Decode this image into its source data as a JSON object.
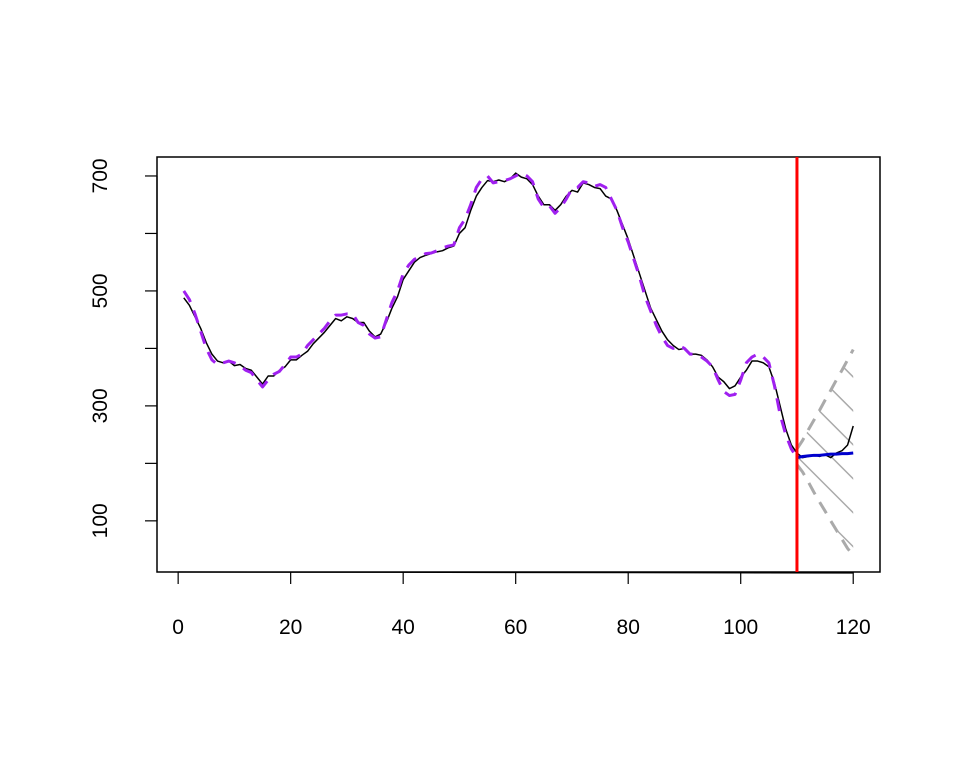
{
  "chart_data": {
    "type": "line",
    "x": [
      1,
      2,
      3,
      4,
      5,
      6,
      7,
      8,
      9,
      10,
      11,
      12,
      13,
      14,
      15,
      16,
      17,
      18,
      19,
      20,
      21,
      22,
      23,
      24,
      25,
      26,
      27,
      28,
      29,
      30,
      31,
      32,
      33,
      34,
      35,
      36,
      37,
      38,
      39,
      40,
      41,
      42,
      43,
      44,
      45,
      46,
      47,
      48,
      49,
      50,
      51,
      52,
      53,
      54,
      55,
      56,
      57,
      58,
      59,
      60,
      61,
      62,
      63,
      64,
      65,
      66,
      67,
      68,
      69,
      70,
      71,
      72,
      73,
      74,
      75,
      76,
      77,
      78,
      79,
      80,
      81,
      82,
      83,
      84,
      85,
      86,
      87,
      88,
      89,
      90,
      91,
      92,
      93,
      94,
      95,
      96,
      97,
      98,
      99,
      100,
      101,
      102,
      103,
      104,
      105,
      106,
      107,
      108,
      109,
      110,
      111,
      112,
      113,
      114,
      115,
      116,
      117,
      118,
      119,
      120
    ],
    "series": [
      {
        "color": "#000000",
        "width": 1.5,
        "dash": "none",
        "values": [
          488,
          475,
          455,
          435,
          410,
          390,
          378,
          375,
          378,
          370,
          372,
          365,
          362,
          350,
          338,
          352,
          352,
          362,
          368,
          380,
          380,
          388,
          395,
          408,
          418,
          428,
          440,
          452,
          448,
          455,
          452,
          445,
          445,
          430,
          420,
          425,
          445,
          470,
          490,
          520,
          535,
          550,
          558,
          562,
          565,
          568,
          570,
          575,
          578,
          600,
          610,
          640,
          665,
          680,
          692,
          690,
          693,
          690,
          695,
          705,
          698,
          695,
          685,
          665,
          650,
          650,
          640,
          650,
          665,
          675,
          672,
          688,
          685,
          680,
          678,
          665,
          660,
          640,
          615,
          590,
          560,
          530,
          500,
          470,
          450,
          430,
          415,
          405,
          398,
          400,
          390,
          390,
          388,
          380,
          368,
          350,
          342,
          330,
          335,
          350,
          362,
          378,
          378,
          375,
          368,
          340,
          300,
          260,
          232,
          218,
          210,
          212,
          215,
          212,
          215,
          210,
          218,
          222,
          232,
          265
        ]
      },
      {
        "color": "#a020f0",
        "width": 3,
        "dash": "13 9",
        "values": [
          500,
          485,
          460,
          430,
          400,
          380,
          372,
          375,
          378,
          375,
          370,
          362,
          358,
          345,
          333,
          345,
          355,
          360,
          372,
          385,
          385,
          390,
          405,
          415,
          425,
          435,
          448,
          458,
          458,
          460,
          460,
          445,
          440,
          425,
          418,
          420,
          450,
          480,
          500,
          530,
          545,
          555,
          560,
          565,
          566,
          570,
          575,
          578,
          580,
          610,
          625,
          650,
          680,
          695,
          700,
          688,
          690,
          692,
          695,
          700,
          705,
          700,
          690,
          660,
          645,
          648,
          635,
          645,
          660,
          678,
          680,
          690,
          688,
          682,
          685,
          680,
          660,
          640,
          610,
          585,
          555,
          525,
          490,
          465,
          440,
          420,
          405,
          400,
          405,
          400,
          390,
          390,
          385,
          378,
          368,
          345,
          325,
          318,
          320,
          345,
          375,
          385,
          390,
          385,
          375,
          335,
          285,
          250,
          225,
          210,
          null,
          null,
          null,
          null,
          null,
          null,
          null,
          null,
          null,
          null
        ]
      },
      {
        "color": "#0000cd",
        "width": 3,
        "dash": "none",
        "values": [
          null,
          null,
          null,
          null,
          null,
          null,
          null,
          null,
          null,
          null,
          null,
          null,
          null,
          null,
          null,
          null,
          null,
          null,
          null,
          null,
          null,
          null,
          null,
          null,
          null,
          null,
          null,
          null,
          null,
          null,
          null,
          null,
          null,
          null,
          null,
          null,
          null,
          null,
          null,
          null,
          null,
          null,
          null,
          null,
          null,
          null,
          null,
          null,
          null,
          null,
          null,
          null,
          null,
          null,
          null,
          null,
          null,
          null,
          null,
          null,
          null,
          null,
          null,
          null,
          null,
          null,
          null,
          null,
          null,
          null,
          null,
          null,
          null,
          null,
          null,
          null,
          null,
          null,
          null,
          null,
          null,
          null,
          null,
          null,
          null,
          null,
          null,
          null,
          null,
          null,
          null,
          null,
          null,
          null,
          null,
          null,
          null,
          null,
          null,
          null,
          null,
          null,
          null,
          null,
          null,
          null,
          null,
          null,
          null,
          210,
          212,
          213,
          214,
          214,
          215,
          216,
          216,
          217,
          217,
          218
        ]
      },
      {
        "color": "#aaaaaa",
        "width": 3,
        "dash": "13 9",
        "band": "upper",
        "values": [
          null,
          null,
          null,
          null,
          null,
          null,
          null,
          null,
          null,
          null,
          null,
          null,
          null,
          null,
          null,
          null,
          null,
          null,
          null,
          null,
          null,
          null,
          null,
          null,
          null,
          null,
          null,
          null,
          null,
          null,
          null,
          null,
          null,
          null,
          null,
          null,
          null,
          null,
          null,
          null,
          null,
          null,
          null,
          null,
          null,
          null,
          null,
          null,
          null,
          null,
          null,
          null,
          null,
          null,
          null,
          null,
          null,
          null,
          null,
          null,
          null,
          null,
          null,
          null,
          null,
          null,
          null,
          null,
          null,
          null,
          null,
          null,
          null,
          null,
          null,
          null,
          null,
          null,
          null,
          null,
          null,
          null,
          null,
          null,
          null,
          null,
          null,
          null,
          null,
          null,
          null,
          null,
          null,
          null,
          null,
          null,
          null,
          null,
          null,
          null,
          null,
          null,
          null,
          null,
          null,
          null,
          null,
          null,
          null,
          225,
          240,
          258,
          275,
          292,
          310,
          327,
          345,
          362,
          380,
          398
        ]
      },
      {
        "color": "#aaaaaa",
        "width": 3,
        "dash": "13 9",
        "band": "lower",
        "values": [
          null,
          null,
          null,
          null,
          null,
          null,
          null,
          null,
          null,
          null,
          null,
          null,
          null,
          null,
          null,
          null,
          null,
          null,
          null,
          null,
          null,
          null,
          null,
          null,
          null,
          null,
          null,
          null,
          null,
          null,
          null,
          null,
          null,
          null,
          null,
          null,
          null,
          null,
          null,
          null,
          null,
          null,
          null,
          null,
          null,
          null,
          null,
          null,
          null,
          null,
          null,
          null,
          null,
          null,
          null,
          null,
          null,
          null,
          null,
          null,
          null,
          null,
          null,
          null,
          null,
          null,
          null,
          null,
          null,
          null,
          null,
          null,
          null,
          null,
          null,
          null,
          null,
          null,
          null,
          null,
          null,
          null,
          null,
          null,
          null,
          null,
          null,
          null,
          null,
          null,
          null,
          null,
          null,
          null,
          null,
          null,
          null,
          null,
          null,
          null,
          null,
          null,
          null,
          null,
          null,
          null,
          null,
          null,
          null,
          198,
          185,
          168,
          150,
          133,
          117,
          100,
          84,
          68,
          52,
          40
        ]
      }
    ],
    "vline": {
      "x": 110,
      "color": "#ff0000"
    },
    "hatch_color": "#aaaaaa",
    "xlim": [
      -3.76,
      124.76
    ],
    "xticks": [
      0,
      20,
      40,
      60,
      80,
      100,
      120
    ],
    "ylim": [
      11,
      733
    ],
    "yticks": [
      100,
      300,
      500,
      700
    ],
    "yticks_unlabeled": [
      200,
      400,
      600
    ],
    "grid": false
  }
}
